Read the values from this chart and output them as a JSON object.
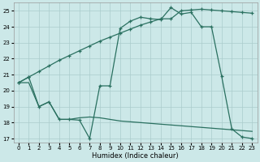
{
  "xlabel": "Humidex (Indice chaleur)",
  "bg_color": "#cce8e8",
  "line_color": "#2a7060",
  "grid_color": "#aacccc",
  "xlim": [
    -0.5,
    23.5
  ],
  "ylim": [
    16.75,
    25.5
  ],
  "yticks": [
    17,
    18,
    19,
    20,
    21,
    22,
    23,
    24,
    25
  ],
  "xticks": [
    0,
    1,
    2,
    3,
    4,
    5,
    6,
    7,
    8,
    9,
    10,
    11,
    12,
    13,
    14,
    15,
    16,
    17,
    18,
    19,
    20,
    21,
    22,
    23
  ],
  "line1_x": [
    0,
    1,
    2,
    3,
    4,
    5,
    6,
    7,
    8,
    9,
    10,
    11,
    12,
    13,
    14,
    15,
    16,
    17,
    18,
    19,
    20,
    21,
    22,
    23
  ],
  "line1_y": [
    20.5,
    20.85,
    21.2,
    21.55,
    21.9,
    22.2,
    22.5,
    22.8,
    23.1,
    23.35,
    23.6,
    23.85,
    24.1,
    24.3,
    24.5,
    24.5,
    25.0,
    25.05,
    25.1,
    25.05,
    25.0,
    24.95,
    24.9,
    24.85
  ],
  "line2_x": [
    0,
    1,
    2,
    3,
    4,
    5,
    6,
    7,
    8,
    9,
    10,
    11,
    12,
    13,
    14,
    15,
    16,
    17,
    18,
    19,
    20,
    21,
    22,
    23
  ],
  "line2_y": [
    20.5,
    20.85,
    19.0,
    19.3,
    18.2,
    18.2,
    18.15,
    17.0,
    20.3,
    20.3,
    23.9,
    24.35,
    24.6,
    24.5,
    24.45,
    25.2,
    24.8,
    24.9,
    24.0,
    24.0,
    20.9,
    17.6,
    17.1,
    17.0
  ],
  "line3_x": [
    0,
    1,
    2,
    3,
    4,
    5,
    6,
    7,
    8,
    9,
    10,
    11,
    12,
    13,
    14,
    15,
    16,
    17,
    18,
    19,
    20,
    21,
    22,
    23
  ],
  "line3_y": [
    20.5,
    20.5,
    19.0,
    19.3,
    18.2,
    18.2,
    18.3,
    18.35,
    18.3,
    18.2,
    18.1,
    18.05,
    18.0,
    17.95,
    17.9,
    17.85,
    17.8,
    17.75,
    17.7,
    17.65,
    17.6,
    17.55,
    17.5,
    17.45
  ]
}
